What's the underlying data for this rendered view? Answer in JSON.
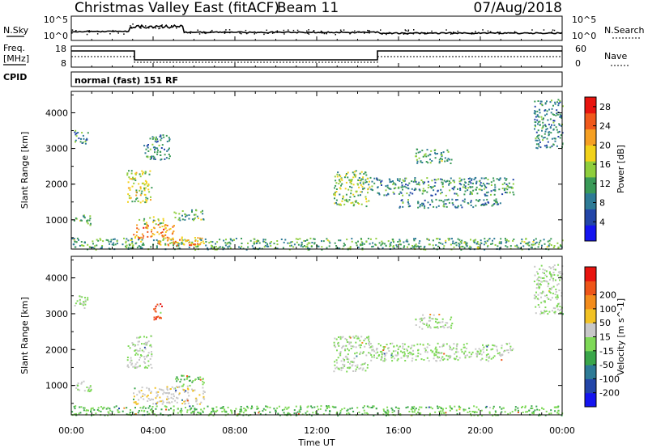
{
  "header": {
    "title": "Christmas Valley East (fitACF)",
    "beam": "Beam 11",
    "date": "07/Aug/2018"
  },
  "nsky_panel": {
    "left_label": "N.Sky",
    "left_ticks": [
      "10^5",
      "10^0"
    ],
    "right_label": "N.Search",
    "right_ticks": [
      "10^5",
      "10^0"
    ]
  },
  "freq_panel": {
    "left_label_line1": "Freq.",
    "left_label_line2": "[MHz]",
    "left_ticks": [
      "18",
      "8"
    ],
    "right_label": "Nave",
    "right_ticks": [
      "60",
      "0"
    ]
  },
  "cpid": {
    "label": "CPID",
    "value": "normal (fast) 151 RF"
  },
  "colors": {
    "power": [
      "#1515f0",
      "#2346a8",
      "#2e7b96",
      "#3a9a58",
      "#8fce3d",
      "#f2d21a",
      "#f6a023",
      "#f0591c",
      "#e8140f"
    ],
    "velocity": [
      "#1515f0",
      "#2346a8",
      "#2e7b96",
      "#3aa64a",
      "#7ed957",
      "#c8c8c8",
      "#f2c224",
      "#f38c1c",
      "#ee5518",
      "#e8140f"
    ]
  },
  "chart_data": [
    {
      "type": "heatmap",
      "name": "power",
      "ylabel": "Slant Range [km]",
      "yticks": [
        "1000",
        "2000",
        "3000",
        "4000"
      ],
      "ylim": [
        180,
        4600
      ],
      "xlim": [
        0,
        24
      ],
      "colorbar_label": "Power [dB]",
      "colorbar_ticks": [
        "4",
        "8",
        "12",
        "16",
        "20",
        "24",
        "28"
      ],
      "colorbar_range": [
        0,
        30
      ],
      "patches": [
        {
          "t0": 0.0,
          "t1": 24.0,
          "r0": 180,
          "r1": 500,
          "v": 12
        },
        {
          "t0": 0.1,
          "t1": 1.0,
          "r0": 850,
          "r1": 1150,
          "v": 12
        },
        {
          "t0": 0.1,
          "t1": 0.8,
          "r0": 3150,
          "r1": 3550,
          "v": 10
        },
        {
          "t0": 2.7,
          "t1": 3.9,
          "r0": 1500,
          "r1": 2400,
          "v": 16
        },
        {
          "t0": 3.0,
          "t1": 5.0,
          "r0": 500,
          "r1": 900,
          "v": 22
        },
        {
          "t0": 3.2,
          "t1": 4.5,
          "r0": 900,
          "r1": 1100,
          "v": 14
        },
        {
          "t0": 4.0,
          "t1": 6.5,
          "r0": 300,
          "r1": 550,
          "v": 22
        },
        {
          "t0": 5.0,
          "t1": 6.5,
          "r0": 1000,
          "r1": 1300,
          "v": 12
        },
        {
          "t0": 3.5,
          "t1": 4.8,
          "r0": 2700,
          "r1": 3400,
          "v": 10
        },
        {
          "t0": 12.8,
          "t1": 14.6,
          "r0": 1400,
          "r1": 2400,
          "v": 14
        },
        {
          "t0": 14.6,
          "t1": 21.6,
          "r0": 1700,
          "r1": 2200,
          "v": 10
        },
        {
          "t0": 16.8,
          "t1": 18.6,
          "r0": 2600,
          "r1": 3000,
          "v": 12
        },
        {
          "t0": 16.0,
          "t1": 21.0,
          "r0": 1350,
          "r1": 1600,
          "v": 9
        },
        {
          "t0": 22.6,
          "t1": 24.0,
          "r0": 3000,
          "r1": 4400,
          "v": 9
        }
      ]
    },
    {
      "type": "heatmap",
      "name": "velocity",
      "ylabel": "Slant Range [km]",
      "yticks": [
        "1000",
        "2000",
        "3000",
        "4000"
      ],
      "ylim": [
        180,
        4600
      ],
      "xlim": [
        0,
        24
      ],
      "xticks": [
        "00:00",
        "04:00",
        "08:00",
        "12:00",
        "16:00",
        "20:00",
        "00:00"
      ],
      "xlabel": "Time UT",
      "colorbar_label": "Velocity [m s^-1]",
      "colorbar_ticks": [
        "-200",
        "-100",
        "-50",
        "-15",
        "15",
        "50",
        "100",
        "200"
      ],
      "colorbar_range": [
        -250,
        250
      ],
      "patches": [
        {
          "t0": 0.0,
          "t1": 24.0,
          "r0": 180,
          "r1": 450,
          "v": -40
        },
        {
          "t0": 0.1,
          "t1": 1.0,
          "r0": 850,
          "r1": 1150,
          "v": 0
        },
        {
          "t0": 0.1,
          "t1": 0.8,
          "r0": 3150,
          "r1": 3550,
          "v": 0
        },
        {
          "t0": 2.7,
          "t1": 3.9,
          "r0": 1500,
          "r1": 2400,
          "v": 0
        },
        {
          "t0": 3.0,
          "t1": 6.5,
          "r0": 500,
          "r1": 1000,
          "v": 40
        },
        {
          "t0": 5.0,
          "t1": 6.5,
          "r0": 1000,
          "r1": 1300,
          "v": -40
        },
        {
          "t0": 4.0,
          "t1": 4.4,
          "r0": 2800,
          "r1": 3300,
          "v": 200
        },
        {
          "t0": 12.8,
          "t1": 14.6,
          "r0": 1400,
          "r1": 2400,
          "v": 0
        },
        {
          "t0": 14.6,
          "t1": 21.6,
          "r0": 1700,
          "r1": 2200,
          "v": 0
        },
        {
          "t0": 16.8,
          "t1": 18.6,
          "r0": 2600,
          "r1": 3000,
          "v": 0
        },
        {
          "t0": 22.6,
          "t1": 24.0,
          "r0": 3000,
          "r1": 4400,
          "v": 0
        }
      ]
    }
  ]
}
